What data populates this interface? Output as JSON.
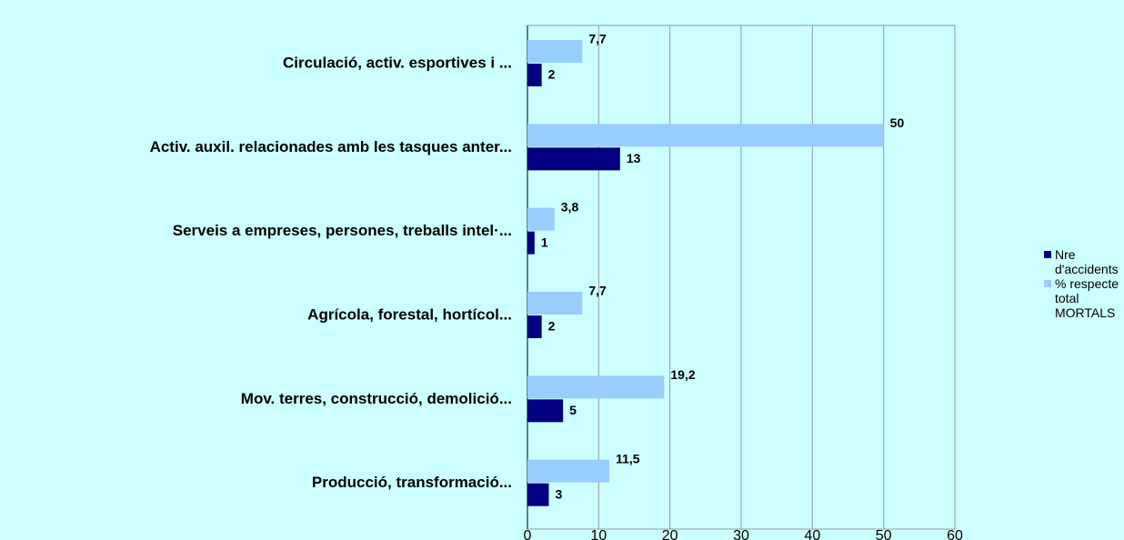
{
  "chart_data": {
    "type": "bar",
    "orientation": "horizontal",
    "categories": [
      "Circulació, activ. esportives i ...",
      "Activ. auxil. relacionades amb les tasques anter...",
      "Serveis a empreses, persones, treballs intel·...",
      "Agrícola, forestal, hortícol...",
      "Mov. terres, construcció, demolició...",
      "Producció, transformació..."
    ],
    "series": [
      {
        "name": "Nre d'accidents",
        "color": "#000080",
        "values": [
          2,
          13,
          1,
          2,
          5,
          3
        ]
      },
      {
        "name": "% respecte total MORTALS",
        "color": "#99ccff",
        "values": [
          7.7,
          50,
          3.8,
          7.7,
          19.2,
          11.5
        ],
        "value_labels": [
          "7,7",
          "50",
          "3,8",
          "7,7",
          "19,2",
          "11,5"
        ]
      }
    ],
    "xlim": [
      0,
      60
    ],
    "xticks": [
      0,
      10,
      20,
      30,
      40,
      50,
      60
    ],
    "grid": true,
    "legend": "right"
  }
}
